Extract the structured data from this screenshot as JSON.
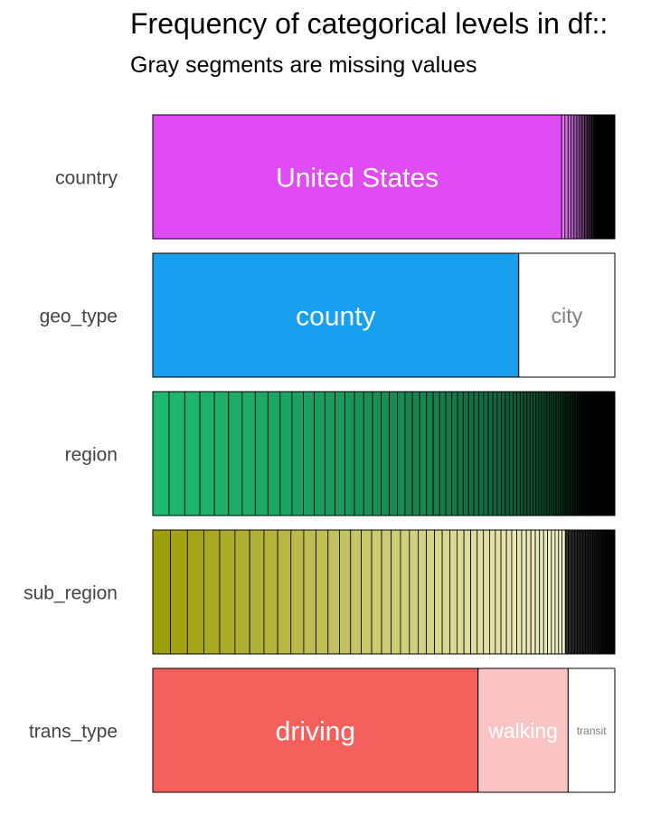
{
  "chart_data": {
    "type": "bar",
    "orientation": "horizontal-stacked-proportion",
    "title": "Frequency of categorical levels in df::",
    "subtitle": "Gray segments are missing values",
    "xlabel": "",
    "ylabel": "",
    "grid": false,
    "legend": "none",
    "bars": [
      {
        "variable": "country",
        "base_color": "#E04CF4",
        "segments": [
          {
            "label": "United States",
            "proportion": 0.885,
            "color": "#E04CF4",
            "label_color": "#FFFFFF"
          }
        ],
        "tail": {
          "proportion": 0.115,
          "levels": 24,
          "start_color": "#E67BF5",
          "end_color": "#000000"
        }
      },
      {
        "variable": "geo_type",
        "base_color": "#17A0F0",
        "segments": [
          {
            "label": "county",
            "proportion": 0.792,
            "color": "#17A0F0",
            "label_color": "#FFFFFF"
          },
          {
            "label": "city",
            "proportion": 0.208,
            "color": "#FFFFFF",
            "label_color": "#808080"
          }
        ]
      },
      {
        "variable": "region",
        "base_color": "#1FB870",
        "segments": [],
        "tail": {
          "proportion": 1.0,
          "levels": 150,
          "start_color": "#1FB870",
          "end_color": "#000000"
        }
      },
      {
        "variable": "sub_region",
        "base_color": "#9E9E0A",
        "segments": [],
        "tail": {
          "proportion": 1.0,
          "levels": 70,
          "start_color": "#9E9E0A",
          "end_color": "#F0F0C8",
          "dark_from": 0.89
        }
      },
      {
        "variable": "trans_type",
        "base_color": "#F5605C",
        "segments": [
          {
            "label": "driving",
            "proportion": 0.704,
            "color": "#F5605C",
            "label_color": "#FFFFFF"
          },
          {
            "label": "walking",
            "proportion": 0.195,
            "color": "#F9C4C4",
            "label_color": "#FFFFFF"
          },
          {
            "label": "transit",
            "proportion": 0.101,
            "color": "#FFFFFF",
            "label_color": "#808080"
          }
        ]
      }
    ]
  }
}
